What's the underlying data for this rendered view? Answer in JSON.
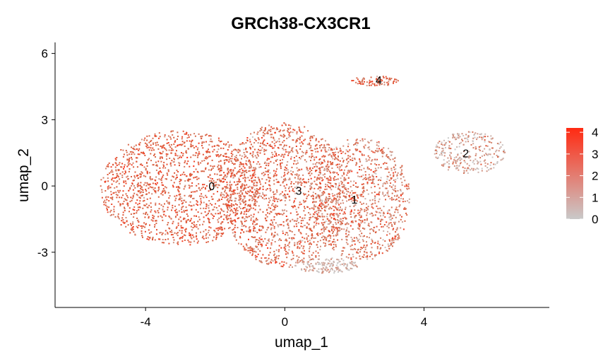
{
  "chart_data": {
    "type": "scatter",
    "title": "GRCh38-CX3CR1",
    "xlabel": "umap_1",
    "ylabel": "umap_2",
    "xlim": [
      -6.6,
      7.6
    ],
    "ylim": [
      -5.5,
      6.5
    ],
    "xticks": [
      -4,
      0,
      4
    ],
    "yticks": [
      -3,
      0,
      3,
      6
    ],
    "grid": false,
    "legend_placement": "right",
    "color_scale": {
      "min": 0,
      "max": 4.2,
      "ticks": [
        0,
        1,
        2,
        3,
        4
      ],
      "low_color": "#c9c9c9",
      "high_color": "#ff2a12",
      "point_color_typical": "#d9603f"
    },
    "clusters": [
      {
        "label": "0",
        "x": -2.1,
        "y": 0.0
      },
      {
        "label": "3",
        "x": 0.4,
        "y": -0.2
      },
      {
        "label": "1",
        "x": 2.0,
        "y": -0.6
      },
      {
        "label": "2",
        "x": 5.2,
        "y": 1.5
      },
      {
        "label": "4",
        "x": 2.7,
        "y": 4.8
      }
    ],
    "regions": [
      {
        "cluster": "0",
        "cx": -3.0,
        "cy": -0.1,
        "rx": 2.3,
        "ry": 2.6,
        "n": 1500,
        "mean_expr": 2.6,
        "sd_expr": 0.6
      },
      {
        "cluster": "3",
        "cx": 0.0,
        "cy": -0.4,
        "rx": 1.8,
        "ry": 3.3,
        "n": 1500,
        "mean_expr": 2.3,
        "sd_expr": 0.8
      },
      {
        "cluster": "1",
        "cx": 2.2,
        "cy": -0.6,
        "rx": 1.4,
        "ry": 2.8,
        "n": 1000,
        "mean_expr": 2.0,
        "sd_expr": 0.9
      },
      {
        "cluster": "2",
        "cx": 5.3,
        "cy": 1.5,
        "rx": 1.05,
        "ry": 0.95,
        "n": 280,
        "mean_expr": 0.9,
        "sd_expr": 0.9
      },
      {
        "cluster": "4",
        "cx": 2.6,
        "cy": 4.75,
        "rx": 0.7,
        "ry": 0.22,
        "n": 80,
        "mean_expr": 2.4,
        "sd_expr": 0.7
      },
      {
        "cluster": "3",
        "cx": 1.2,
        "cy": -3.6,
        "rx": 0.9,
        "ry": 0.35,
        "n": 150,
        "mean_expr": 0.7,
        "sd_expr": 0.6
      }
    ]
  }
}
